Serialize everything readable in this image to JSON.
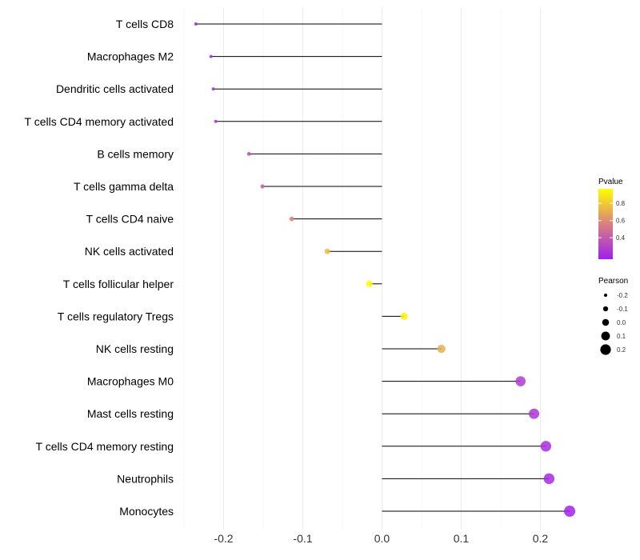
{
  "chart_data": {
    "type": "lollipop",
    "title": "",
    "xlabel": "",
    "ylabel": "",
    "xlim": [
      -0.25,
      0.245
    ],
    "x_ticks": [
      -0.2,
      -0.1,
      0.0,
      0.1,
      0.2
    ],
    "x_tick_labels": [
      "-0.2",
      "-0.1",
      "0.0",
      "0.1",
      "0.2"
    ],
    "grid": true,
    "categories": [
      "T cells CD8",
      "Macrophages M2",
      "Dendritic cells activated",
      "T cells CD4 memory activated",
      "B cells memory",
      "T cells gamma delta",
      "T cells CD4 naive",
      "NK cells activated",
      "T cells follicular helper",
      "T cells regulatory  Tregs",
      "NK cells resting",
      "Macrophages M0",
      "Mast cells resting",
      "T cells CD4 memory resting",
      "Neutrophils",
      "Monocytes"
    ],
    "pearson": [
      -0.235,
      -0.216,
      -0.213,
      -0.21,
      -0.168,
      -0.151,
      -0.114,
      -0.069,
      -0.016,
      0.028,
      0.075,
      0.175,
      0.192,
      0.207,
      0.211,
      0.237
    ],
    "pvalue": [
      0.18,
      0.2,
      0.21,
      0.22,
      0.35,
      0.42,
      0.58,
      0.75,
      0.97,
      0.93,
      0.71,
      0.27,
      0.24,
      0.21,
      0.2,
      0.16
    ],
    "legend_color": {
      "title": "Pvalue",
      "ticks": [
        0.4,
        0.6,
        0.8
      ],
      "tick_labels": [
        "0.4",
        "0.6",
        "0.8"
      ],
      "range": [
        0.15,
        0.97
      ],
      "color_low": "#a020f0",
      "color_mid": "#d98080",
      "color_high": "#ffff00"
    },
    "legend_size": {
      "title": "Pearson",
      "values": [
        -0.2,
        -0.1,
        0.0,
        0.1,
        0.2
      ],
      "labels": [
        "-0.2",
        "-0.1",
        "0.0",
        "0.1",
        "0.2"
      ]
    },
    "legend_position": "right"
  }
}
